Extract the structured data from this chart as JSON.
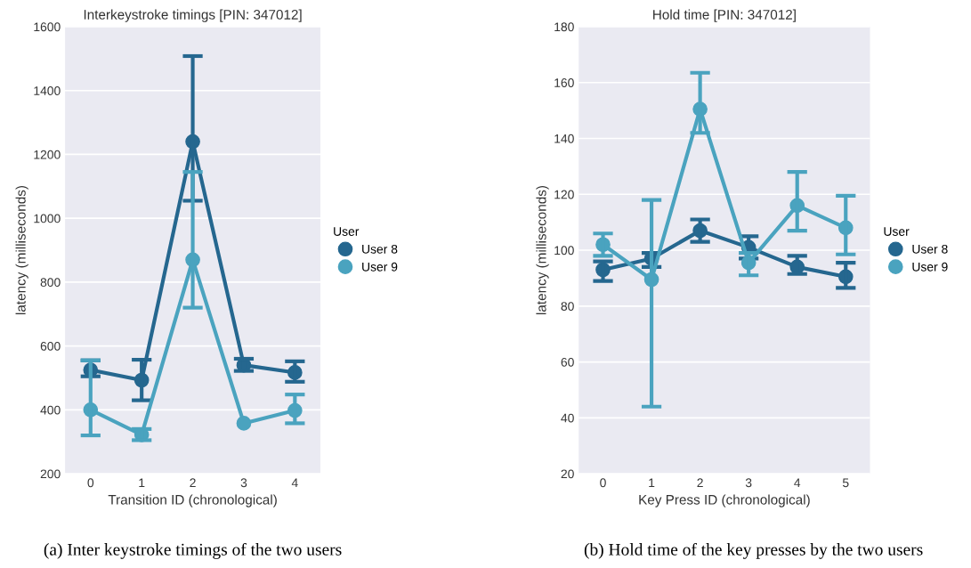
{
  "chart_data": [
    {
      "type": "line",
      "title": "Interkeystroke timings [PIN: 347012]",
      "xlabel": "Transition ID (chronological)",
      "ylabel": "latency (milliseconds)",
      "legend_title": "User",
      "legend": "right",
      "marker": "circle",
      "line_style": "solid",
      "grid": "y",
      "categories": [
        "0",
        "1",
        "2",
        "3",
        "4"
      ],
      "ylim": [
        200,
        1600
      ],
      "yticks": [
        200,
        400,
        600,
        800,
        1000,
        1200,
        1400,
        1600
      ],
      "series": [
        {
          "name": "User 8",
          "color": "#25678f",
          "values": [
            525,
            493,
            1240,
            540,
            517
          ],
          "errors": [
            [
              505,
              555
            ],
            [
              430,
              557
            ],
            [
              1055,
              1508
            ],
            [
              522,
              560
            ],
            [
              488,
              552
            ]
          ]
        },
        {
          "name": "User 9",
          "color": "#4aa3bf",
          "values": [
            400,
            322,
            870,
            358,
            398
          ],
          "errors": [
            [
              320,
              555
            ],
            [
              305,
              340
            ],
            [
              720,
              1145
            ],
            null,
            [
              358,
              448
            ]
          ]
        }
      ],
      "annotations": [
        "(a) Inter keystroke timings of the two users"
      ]
    },
    {
      "type": "line",
      "title": "Hold time [PIN: 347012]",
      "xlabel": "Key Press ID (chronological)",
      "ylabel": "latency (milliseconds)",
      "legend_title": "User",
      "legend": "right",
      "marker": "circle",
      "line_style": "solid",
      "grid": "y",
      "categories": [
        "0",
        "1",
        "2",
        "3",
        "4",
        "5"
      ],
      "ylim": [
        20,
        180
      ],
      "yticks": [
        20,
        40,
        60,
        80,
        100,
        120,
        140,
        160,
        180
      ],
      "series": [
        {
          "name": "User 8",
          "color": "#25678f",
          "values": [
            93,
            97,
            107,
            101,
            94,
            90.5
          ],
          "errors": [
            [
              89,
              96
            ],
            [
              94,
              99
            ],
            [
              103,
              111
            ],
            [
              97,
              105
            ],
            [
              91.5,
              98
            ],
            [
              86.5,
              95.5
            ]
          ]
        },
        {
          "name": "User 9",
          "color": "#4aa3bf",
          "values": [
            102,
            89.5,
            150.5,
            95.5,
            116,
            108
          ],
          "errors": [
            [
              98,
              106
            ],
            [
              44,
              118
            ],
            [
              142,
              163.5
            ],
            [
              91,
              99
            ],
            [
              107,
              128
            ],
            [
              98.5,
              119.5
            ]
          ]
        }
      ],
      "annotations": [
        "(b) Hold time of the key presses by the two users"
      ]
    }
  ]
}
